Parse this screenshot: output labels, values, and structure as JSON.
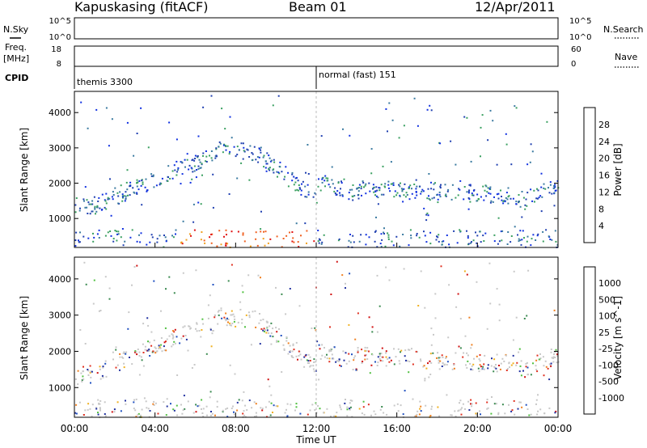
{
  "header": {
    "station": "Kapuskasing (fitACF)",
    "beam": "Beam 01",
    "date": "12/Apr/2011"
  },
  "top_panel": {
    "nsky_label": "N.Sky",
    "nsearch_label": "N.Search",
    "nave_label": "Nave",
    "freq_label_line1": "Freq.",
    "freq_label_line2": "[MHz]",
    "cpid_label": "CPID",
    "nsky_ticks": [
      "10^5",
      "10^0"
    ],
    "nsearch_ticks": [
      "10^5",
      "10^0"
    ],
    "freq_ticks": [
      "18",
      "8"
    ],
    "nave_ticks": [
      "60",
      "0"
    ],
    "cpid_segments": [
      {
        "label": "themis 3300",
        "start_hour": 0
      },
      {
        "label": "normal (fast) 151",
        "start_hour": 12
      }
    ]
  },
  "chart_data": [
    {
      "type": "heatmap",
      "title": "",
      "xlabel": "Time UT",
      "ylabel": "Slant Range [km]",
      "colorbar_label": "Power [dB]",
      "x_ticks": [
        "00:00",
        "04:00",
        "08:00",
        "12:00",
        "16:00",
        "20:00",
        "00:00"
      ],
      "xlim_hours": [
        0,
        24
      ],
      "y_ticks": [
        "1000",
        "2000",
        "3000",
        "4000"
      ],
      "ylim": [
        180,
        4600
      ],
      "colorbar_ticks": [
        "4",
        "8",
        "12",
        "16",
        "20",
        "24",
        "28"
      ],
      "colorbar_colors": [
        "#1030e0",
        "#2040b0",
        "#3a7aa0",
        "#3aa060",
        "#a0c030",
        "#f0d020",
        "#f0a020",
        "#f06020",
        "#e01010"
      ]
    },
    {
      "type": "heatmap",
      "title": "",
      "xlabel": "Time UT",
      "ylabel": "Slant Range [km]",
      "colorbar_label": "Velocity [m s^-1]",
      "x_ticks": [
        "00:00",
        "04:00",
        "08:00",
        "12:00",
        "16:00",
        "20:00",
        "00:00"
      ],
      "xlim_hours": [
        0,
        24
      ],
      "y_ticks": [
        "1000",
        "2000",
        "3000",
        "4000"
      ],
      "ylim": [
        180,
        4600
      ],
      "colorbar_ticks": [
        "1000",
        "500",
        "100",
        "25",
        "-25",
        "-100",
        "-500",
        "-1000"
      ],
      "colorbar_colors": [
        "#2030a0",
        "#2050c0",
        "#3a8a50",
        "#50c040",
        "#c8c8c8",
        "#f0b020",
        "#f08020",
        "#e03020",
        "#d01010"
      ]
    }
  ],
  "bottom_axis": {
    "x_ticks": [
      "00:00",
      "04:00",
      "08:00",
      "12:00",
      "16:00",
      "20:00",
      "00:00"
    ],
    "xlabel": "Time UT"
  }
}
